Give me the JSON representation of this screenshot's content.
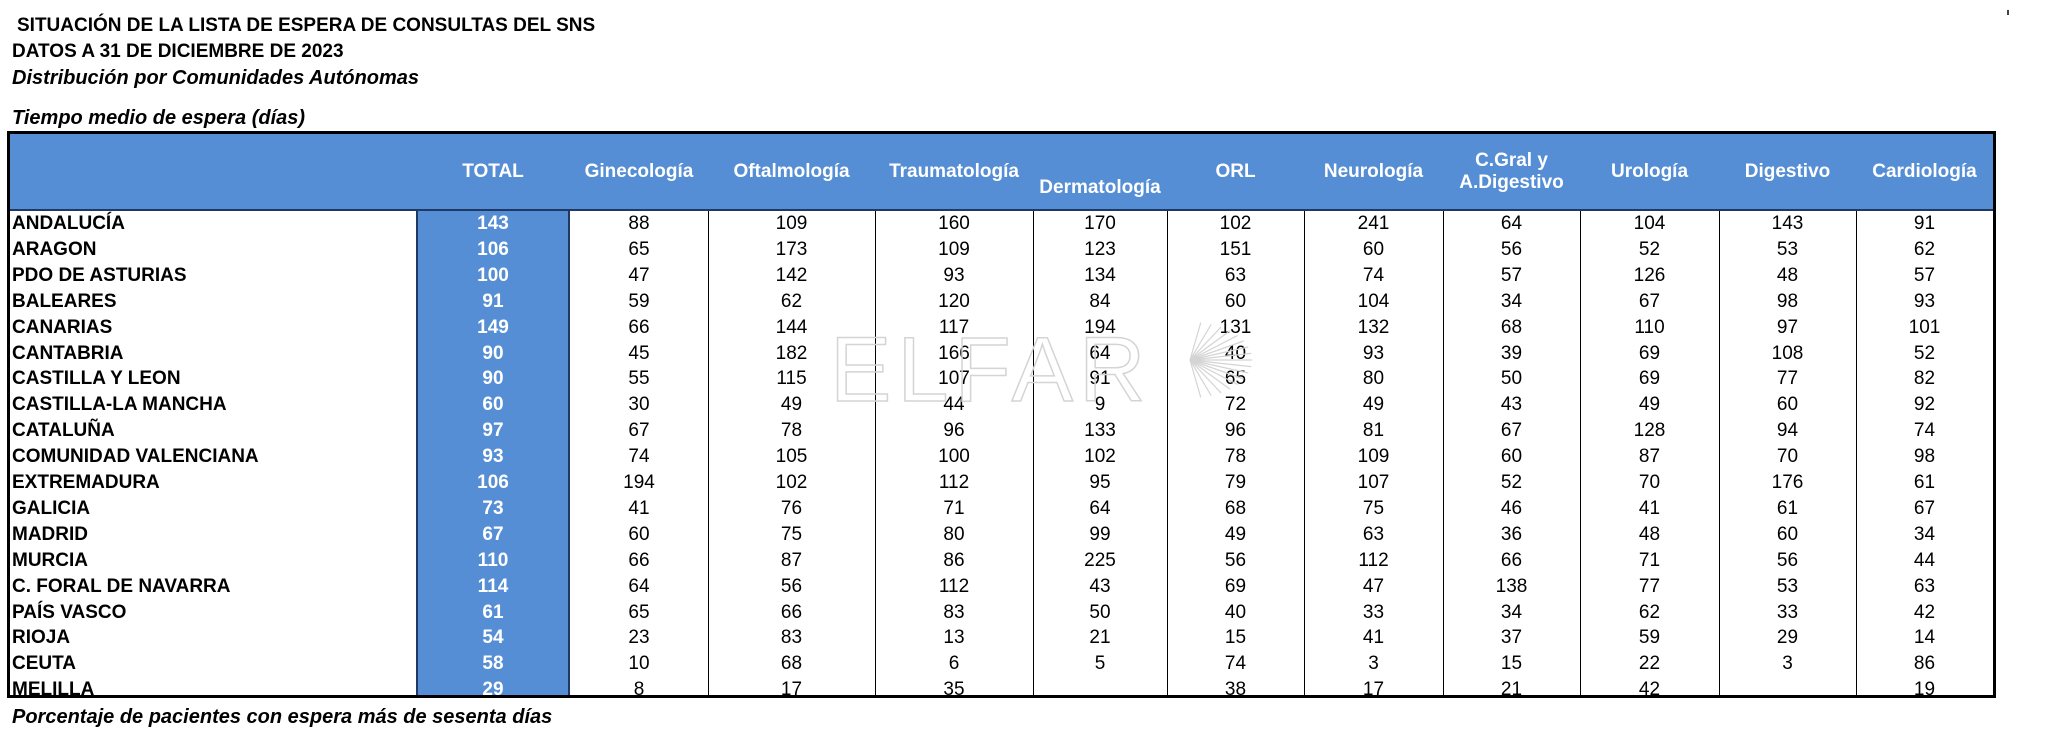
{
  "titles": {
    "line1": "SITUACIÓN DE LA LISTA DE ESPERA DE CONSULTAS DEL SNS",
    "line2": "DATOS A  31 DE DICIEMBRE DE 2023",
    "line3": "Distribución por Comunidades Autónomas",
    "section": "Tiempo medio de espera (días)",
    "footer": "Porcentaje de pacientes con espera más de sesenta días"
  },
  "watermark": "ELFARO",
  "colors": {
    "header_bg": "#558ED5",
    "header_text": "#FFFFFF",
    "total_bg": "#558ED5"
  },
  "table": {
    "columns": [
      "TOTAL",
      "Ginecología",
      "Oftalmología",
      "Traumatología",
      "Dermatología",
      "ORL",
      "Neurología",
      "C.Gral y\nA.Digestivo",
      "Urología",
      "Digestivo",
      "Cardiología"
    ],
    "rows": [
      {
        "name": "ANDALUCÍA",
        "values": [
          "143",
          "88",
          "109",
          "160",
          "170",
          "102",
          "241",
          "64",
          "104",
          "143",
          "91"
        ]
      },
      {
        "name": "ARAGON",
        "values": [
          "106",
          "65",
          "173",
          "109",
          "123",
          "151",
          "60",
          "56",
          "52",
          "53",
          "62"
        ]
      },
      {
        "name": "PDO DE ASTURIAS",
        "values": [
          "100",
          "47",
          "142",
          "93",
          "134",
          "63",
          "74",
          "57",
          "126",
          "48",
          "57"
        ]
      },
      {
        "name": "BALEARES",
        "values": [
          "91",
          "59",
          "62",
          "120",
          "84",
          "60",
          "104",
          "34",
          "67",
          "98",
          "93"
        ]
      },
      {
        "name": "CANARIAS",
        "values": [
          "149",
          "66",
          "144",
          "117",
          "194",
          "131",
          "132",
          "68",
          "110",
          "97",
          "101"
        ]
      },
      {
        "name": "CANTABRIA",
        "values": [
          "90",
          "45",
          "182",
          "166",
          "64",
          "40",
          "93",
          "39",
          "69",
          "108",
          "52"
        ]
      },
      {
        "name": "CASTILLA Y LEON",
        "values": [
          "90",
          "55",
          "115",
          "107",
          "91",
          "65",
          "80",
          "50",
          "69",
          "77",
          "82"
        ]
      },
      {
        "name": "CASTILLA-LA MANCHA",
        "values": [
          "60",
          "30",
          "49",
          "44",
          "9",
          "72",
          "49",
          "43",
          "49",
          "60",
          "92"
        ]
      },
      {
        "name": "CATALUÑA",
        "values": [
          "97",
          "67",
          "78",
          "96",
          "133",
          "96",
          "81",
          "67",
          "128",
          "94",
          "74"
        ]
      },
      {
        "name": "COMUNIDAD VALENCIANA",
        "values": [
          "93",
          "74",
          "105",
          "100",
          "102",
          "78",
          "109",
          "60",
          "87",
          "70",
          "98"
        ]
      },
      {
        "name": "EXTREMADURA",
        "values": [
          "106",
          "194",
          "102",
          "112",
          "95",
          "79",
          "107",
          "52",
          "70",
          "176",
          "61"
        ]
      },
      {
        "name": "GALICIA",
        "values": [
          "73",
          "41",
          "76",
          "71",
          "64",
          "68",
          "75",
          "46",
          "41",
          "61",
          "67"
        ]
      },
      {
        "name": "MADRID",
        "values": [
          "67",
          "60",
          "75",
          "80",
          "99",
          "49",
          "63",
          "36",
          "48",
          "60",
          "34"
        ]
      },
      {
        "name": "MURCIA",
        "values": [
          "110",
          "66",
          "87",
          "86",
          "225",
          "56",
          "112",
          "66",
          "71",
          "56",
          "44"
        ]
      },
      {
        "name": "C. FORAL DE NAVARRA",
        "values": [
          "114",
          "64",
          "56",
          "112",
          "43",
          "69",
          "47",
          "138",
          "77",
          "53",
          "63"
        ]
      },
      {
        "name": "PAÍS VASCO",
        "values": [
          "61",
          "65",
          "66",
          "83",
          "50",
          "40",
          "33",
          "34",
          "62",
          "33",
          "42"
        ]
      },
      {
        "name": "RIOJA",
        "values": [
          "54",
          "23",
          "83",
          "13",
          "21",
          "15",
          "41",
          "37",
          "59",
          "29",
          "14"
        ]
      },
      {
        "name": "CEUTA",
        "values": [
          "58",
          "10",
          "68",
          "6",
          "5",
          "74",
          "3",
          "15",
          "22",
          "3",
          "86"
        ]
      },
      {
        "name": "MELILLA",
        "values": [
          "29",
          "8",
          "17",
          "35",
          "",
          "38",
          "17",
          "21",
          "42",
          "",
          "19"
        ]
      }
    ]
  }
}
